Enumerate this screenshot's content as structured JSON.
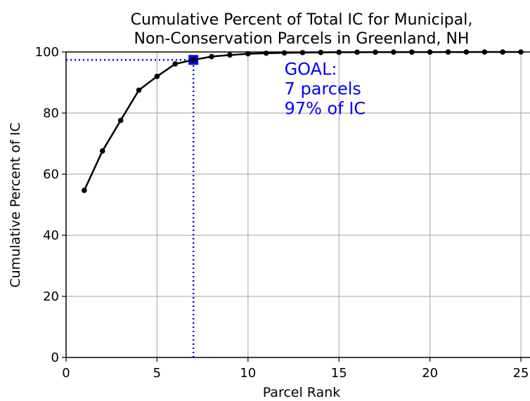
{
  "chart_data": {
    "type": "line",
    "title_line1": "Cumulative Percent of Total IC for Municipal,",
    "title_line2": "Non-Conservation Parcels in Greenland, NH",
    "xlabel": "Parcel Rank",
    "ylabel": "Cumulative Percent of IC",
    "xlim": [
      0,
      25.5
    ],
    "ylim": [
      0,
      100
    ],
    "xticks": [
      0,
      5,
      10,
      15,
      20,
      25
    ],
    "yticks": [
      0,
      20,
      40,
      60,
      80,
      100
    ],
    "grid": true,
    "series": [
      {
        "x": [
          1,
          2,
          3,
          4,
          5,
          6,
          7,
          8,
          9,
          10,
          11,
          12,
          13,
          14,
          15,
          16,
          17,
          18,
          19,
          20,
          21,
          22,
          23,
          24,
          25
        ],
        "y": [
          54.7,
          67.6,
          77.6,
          87.5,
          92.0,
          96.1,
          97.4,
          98.5,
          99.0,
          99.4,
          99.6,
          99.7,
          99.8,
          99.85,
          99.9,
          99.92,
          99.94,
          99.95,
          99.96,
          99.97,
          99.98,
          99.98,
          99.99,
          99.99,
          100.0
        ],
        "color": "#000000"
      }
    ],
    "goal": {
      "x": 7,
      "y": 97.4,
      "color": "#0000ff",
      "annotation": [
        "GOAL:",
        "7 parcels",
        "97% of IC"
      ],
      "annotation_anchor": [
        12,
        92.5
      ]
    }
  }
}
